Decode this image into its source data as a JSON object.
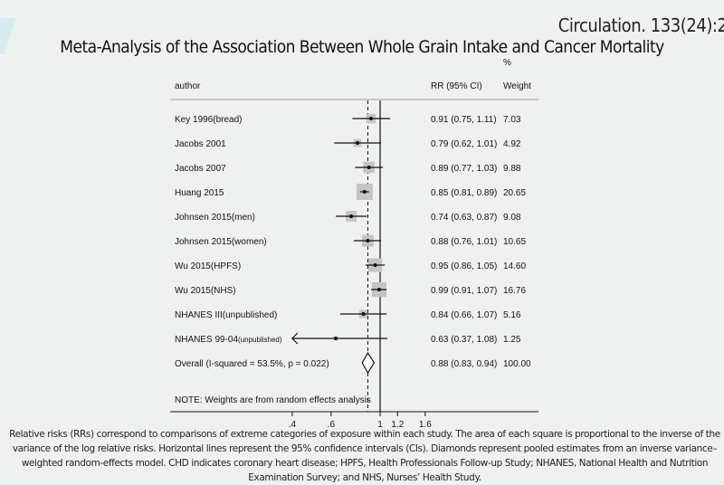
{
  "citation": "Circulation. 133(24):2",
  "chart_data": {
    "type": "forest",
    "title": "Meta-Analysis of the Association Between Whole Grain Intake and Cancer Mortality",
    "columns": {
      "author": "author",
      "rr": "RR (95% CI)",
      "weight_top": "%",
      "weight": "Weight"
    },
    "studies": [
      {
        "author": "Key 1996(bread)",
        "suffix": "",
        "rr": 0.91,
        "lo": 0.75,
        "hi": 1.11,
        "rr_text": "0.91 (0.75, 1.11)",
        "weight": 7.03,
        "weight_text": "7.03"
      },
      {
        "author": "Jacobs 2001",
        "suffix": "",
        "rr": 0.79,
        "lo": 0.62,
        "hi": 1.01,
        "rr_text": "0.79 (0.62, 1.01)",
        "weight": 4.92,
        "weight_text": "4.92"
      },
      {
        "author": "Jacobs 2007",
        "suffix": "",
        "rr": 0.89,
        "lo": 0.77,
        "hi": 1.03,
        "rr_text": "0.89 (0.77, 1.03)",
        "weight": 9.88,
        "weight_text": "9.88"
      },
      {
        "author": "Huang 2015",
        "suffix": "",
        "rr": 0.85,
        "lo": 0.81,
        "hi": 0.89,
        "rr_text": "0.85 (0.81, 0.89)",
        "weight": 20.65,
        "weight_text": "20.65"
      },
      {
        "author": "Johnsen 2015(men)",
        "suffix": "",
        "rr": 0.74,
        "lo": 0.63,
        "hi": 0.87,
        "rr_text": "0.74 (0.63, 0.87)",
        "weight": 9.08,
        "weight_text": "9.08"
      },
      {
        "author": "Johnsen 2015(women)",
        "suffix": "",
        "rr": 0.88,
        "lo": 0.76,
        "hi": 1.01,
        "rr_text": "0.88 (0.76, 1.01)",
        "weight": 10.65,
        "weight_text": "10.65"
      },
      {
        "author": "Wu 2015(HPFS)",
        "suffix": "",
        "rr": 0.95,
        "lo": 0.86,
        "hi": 1.05,
        "rr_text": "0.95 (0.86, 1.05)",
        "weight": 14.6,
        "weight_text": "14.60"
      },
      {
        "author": "Wu 2015(NHS)",
        "suffix": "",
        "rr": 0.99,
        "lo": 0.91,
        "hi": 1.07,
        "rr_text": "0.99 (0.91, 1.07)",
        "weight": 16.76,
        "weight_text": "16.76"
      },
      {
        "author": "NHANES III(unpublished)",
        "suffix": "",
        "rr": 0.84,
        "lo": 0.66,
        "hi": 1.07,
        "rr_text": "0.84 (0.66, 1.07)",
        "weight": 5.16,
        "weight_text": "5.16"
      },
      {
        "author": "NHANES 99-04",
        "suffix": "(unpublished)",
        "rr": 0.63,
        "lo": 0.37,
        "hi": 1.08,
        "rr_text": "0.63 (0.37, 1.08)",
        "weight": 1.25,
        "weight_text": "1.25"
      }
    ],
    "overall": {
      "label": "Overall  (I-squared = 53.5%, p = 0.022)",
      "rr": 0.88,
      "lo": 0.83,
      "hi": 0.94,
      "rr_text": "0.88 (0.83, 0.94)",
      "weight_text": "100.00"
    },
    "note": "NOTE: Weights are from random effects analysis",
    "x_scale": "log",
    "xlim": [
      0.4,
      1.6
    ],
    "x_ticks": [
      {
        "v": 0.4,
        "label": ".4"
      },
      {
        "v": 0.6,
        "label": ".6"
      },
      {
        "v": 1,
        "label": "1"
      },
      {
        "v": 1.2,
        "label": "1.2"
      },
      {
        "v": 1.6,
        "label": "1.6"
      }
    ],
    "null_line": 1
  },
  "caption": "Relative risks (RRs) correspond to comparisons of extreme categories of exposure within each study. The area of each square is proportional to the inverse of the variance of the log relative risks. Horizontal lines represent the 95% confidence intervals (CIs). Diamonds represent pooled estimates from an inverse variance–weighted random-effects model. CHD indicates coronary heart disease; HPFS, Health Professionals Follow-up Study; NHANES, National Health and Nutrition Examination Survey; and NHS, Nurses’ Health Study.",
  "colors": {
    "square": "#c4c4c4",
    "line": "#111111",
    "background": "#eff1f0",
    "accent": "#cfe6e8"
  }
}
